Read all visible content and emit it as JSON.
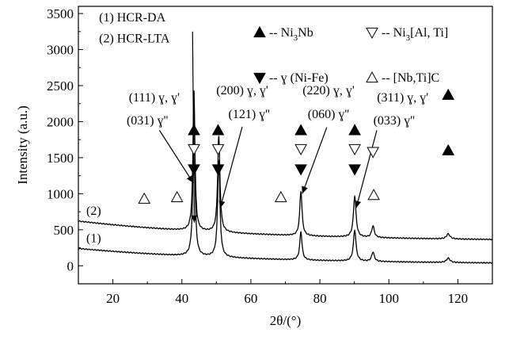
{
  "chart_data": {
    "type": "line",
    "xlabel": "2θ/(°)",
    "ylabel": "Intensity (a.u.)",
    "xlim": [
      10,
      130
    ],
    "ylim": [
      -250,
      3600
    ],
    "x_ticks": [
      20,
      40,
      60,
      80,
      100,
      120
    ],
    "y_ticks": [
      0,
      500,
      1000,
      1500,
      2000,
      2500,
      3000,
      3500
    ],
    "grid": false,
    "series": [
      {
        "name": "(1) HCR-DA",
        "label": "(1)",
        "baseline": 240,
        "baseline_end": 20,
        "peaks": [
          {
            "x": 43.5,
            "height": 2050,
            "width": 0.35
          },
          {
            "x": 50.7,
            "height": 1350,
            "width": 0.4
          },
          {
            "x": 74.5,
            "height": 390,
            "width": 0.4
          },
          {
            "x": 90.1,
            "height": 430,
            "width": 0.45
          },
          {
            "x": 95.4,
            "height": 130,
            "width": 0.45
          },
          {
            "x": 117.2,
            "height": 60,
            "width": 0.6
          }
        ]
      },
      {
        "name": "(2) HCR-LTA",
        "label": "(2)",
        "baseline": 620,
        "baseline_end": 340,
        "peaks": [
          {
            "x": 43.5,
            "height": 1950,
            "width": 0.35
          },
          {
            "x": 50.7,
            "height": 1330,
            "width": 0.4
          },
          {
            "x": 74.5,
            "height": 620,
            "width": 0.4
          },
          {
            "x": 90.1,
            "height": 570,
            "width": 0.45
          },
          {
            "x": 95.4,
            "height": 160,
            "width": 0.45
          },
          {
            "x": 117.2,
            "height": 70,
            "width": 0.6
          }
        ]
      }
    ],
    "markers": [
      {
        "shape": "up-filled",
        "x": 43.5,
        "y": 1880
      },
      {
        "shape": "down-open",
        "x": 43.5,
        "y": 1620
      },
      {
        "shape": "down-filled",
        "x": 43.5,
        "y": 1340
      },
      {
        "shape": "up-filled",
        "x": 50.5,
        "y": 1880
      },
      {
        "shape": "down-open",
        "x": 50.5,
        "y": 1620
      },
      {
        "shape": "down-filled",
        "x": 50.5,
        "y": 1340
      },
      {
        "shape": "up-filled",
        "x": 74.5,
        "y": 1880
      },
      {
        "shape": "down-open",
        "x": 74.5,
        "y": 1620
      },
      {
        "shape": "down-filled",
        "x": 74.5,
        "y": 1340
      },
      {
        "shape": "up-filled",
        "x": 90.1,
        "y": 1880
      },
      {
        "shape": "down-open",
        "x": 90.1,
        "y": 1620
      },
      {
        "shape": "down-filled",
        "x": 90.1,
        "y": 1340
      },
      {
        "shape": "down-open",
        "x": 95.4,
        "y": 1580
      },
      {
        "shape": "up-filled",
        "x": 117.2,
        "y": 2370
      },
      {
        "shape": "up-filled",
        "x": 117.2,
        "y": 1600
      },
      {
        "shape": "up-open",
        "x": 29.1,
        "y": 930
      },
      {
        "shape": "up-open",
        "x": 38.6,
        "y": 950
      },
      {
        "shape": "up-open",
        "x": 68.7,
        "y": 950
      },
      {
        "shape": "up-open",
        "x": 95.6,
        "y": 980
      }
    ],
    "legend": [
      {
        "shape": "up-filled",
        "text_main": "-- Ni",
        "sub": "3",
        "text_after": "Nb"
      },
      {
        "shape": "down-open",
        "text_main": "-- Ni",
        "sub": "3",
        "text_after": "[Al, Ti]"
      },
      {
        "shape": "down-filled",
        "text_main": "-- ɣ (Ni-Fe)",
        "sub": "",
        "text_after": ""
      },
      {
        "shape": "up-open",
        "text_main": "-- [Nb,Ti]C",
        "sub": "",
        "text_after": ""
      }
    ],
    "annotations": [
      {
        "text": "(1) HCR-DA",
        "tx": 16,
        "ty": 3390
      },
      {
        "text": "(2) HCR-LTA",
        "tx": 16,
        "ty": 3100
      },
      {
        "text": "(111) ɣ, ɣ'",
        "tx": 32,
        "ty": 2280,
        "anchor": "middle"
      },
      {
        "text": "(031) ɣ''",
        "tx": 30,
        "ty": 1960,
        "anchor": "middle"
      },
      {
        "text": "(200) ɣ, ɣ'",
        "tx": 57.5,
        "ty": 2380,
        "anchor": "middle"
      },
      {
        "text": "(121) ɣ''",
        "tx": 59.5,
        "ty": 2050,
        "anchor": "middle"
      },
      {
        "text": "(220) ɣ, ɣ'",
        "tx": 82.5,
        "ty": 2380,
        "anchor": "middle"
      },
      {
        "text": "(060) ɣ''",
        "tx": 82.5,
        "ty": 2050,
        "anchor": "middle"
      },
      {
        "text": "(311) ɣ, ɣ'",
        "tx": 104,
        "ty": 2280,
        "anchor": "middle"
      },
      {
        "text": "(033) ɣ''",
        "tx": 101.5,
        "ty": 1960,
        "anchor": "middle"
      }
    ],
    "arrows": [
      {
        "from": [
          43.1,
          3250
        ],
        "to": [
          43.6,
          600
        ]
      },
      {
        "from": [
          33.5,
          1880
        ],
        "to": [
          43.3,
          1150
        ]
      },
      {
        "from": [
          57.5,
          1930
        ],
        "to": [
          51.1,
          800
        ]
      },
      {
        "from": [
          82,
          1920
        ],
        "to": [
          74.9,
          1000
        ]
      },
      {
        "from": [
          96.5,
          1880
        ],
        "to": [
          90.5,
          800
        ]
      }
    ]
  }
}
